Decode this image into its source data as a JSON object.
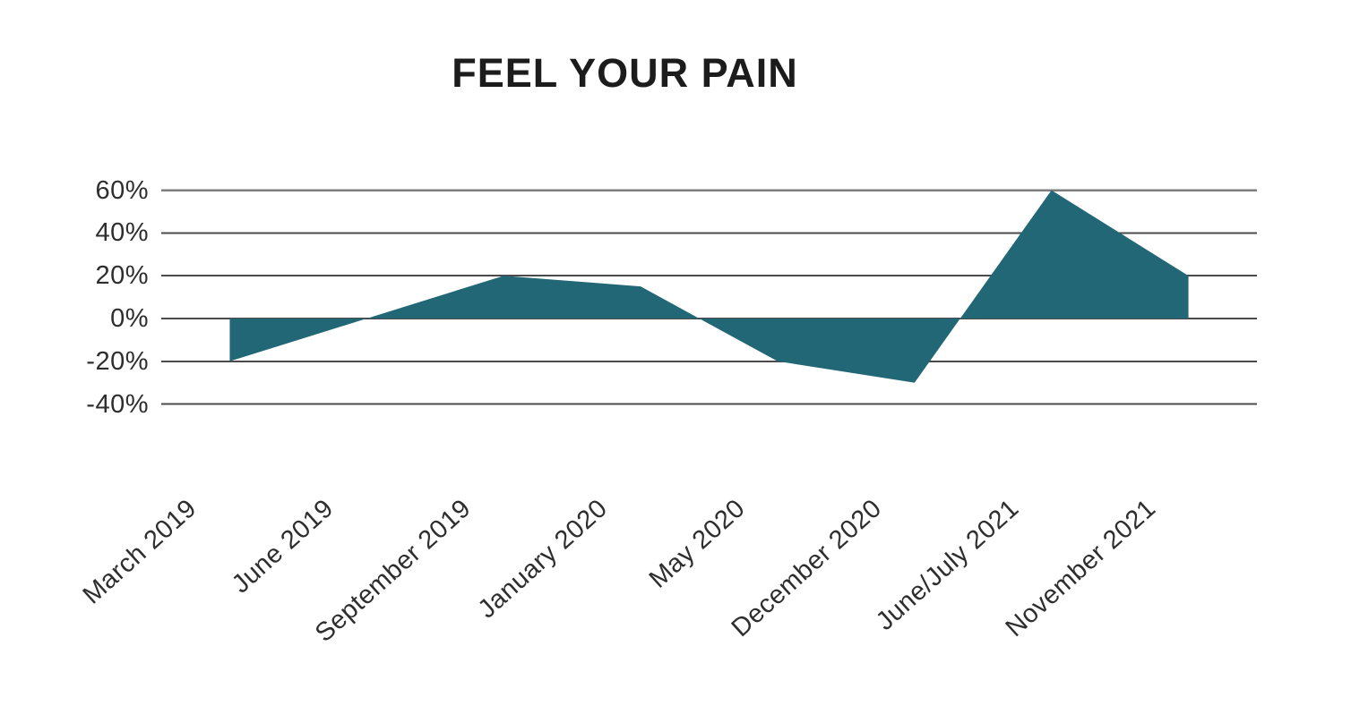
{
  "page": {
    "background": "#ffffff"
  },
  "chart_data": {
    "type": "area",
    "title": "FEEL YOUR PAIN",
    "categories": [
      "March 2019",
      "June 2019",
      "September 2019",
      "January 2020",
      "May 2020",
      "December 2020",
      "June/July 2021",
      "November 2021"
    ],
    "values": [
      -20,
      0,
      20,
      15,
      -20,
      -30,
      60,
      20
    ],
    "unit": "%",
    "baseline": 0,
    "y_ticks": [
      60,
      40,
      20,
      0,
      -20,
      -40
    ],
    "y_tick_labels": [
      "60%",
      "40%",
      "20%",
      "0%",
      "-20%",
      "-40%"
    ],
    "ylim": [
      -40,
      60
    ],
    "xlabel": "",
    "ylabel": "",
    "grid": "horizontal",
    "legend": "none",
    "x_label_rotation_deg": -42,
    "colors": {
      "area_fill": "#216775",
      "gridline": "#4a4a4a",
      "gridline_top": "#7d7d7d",
      "title_text": "#1c1c1c",
      "tick_text": "#2e2e2e"
    }
  }
}
